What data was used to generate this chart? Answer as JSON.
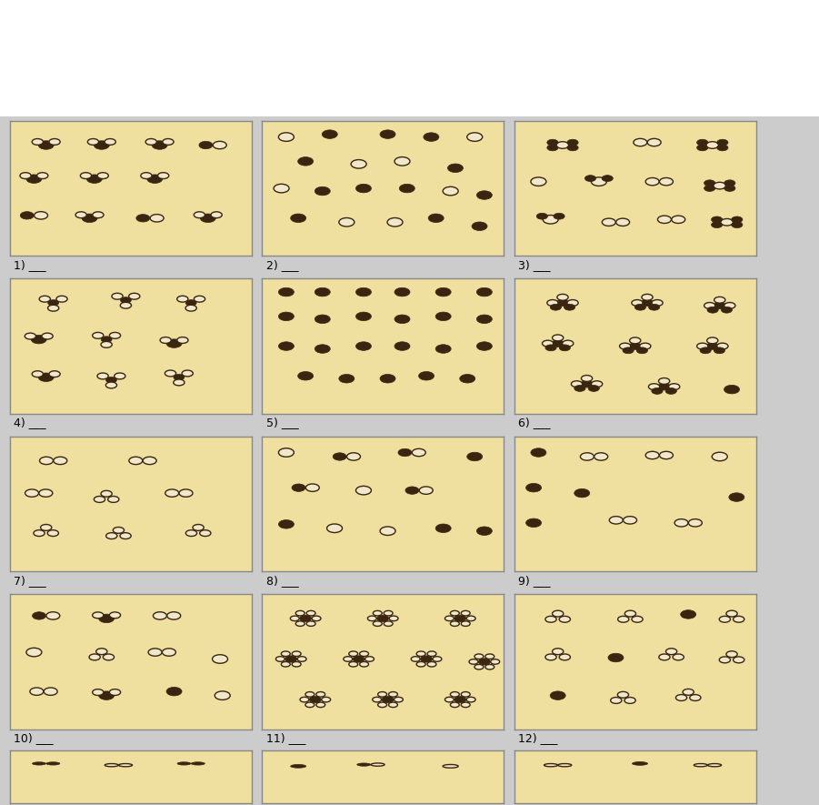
{
  "bg_color": "#f0e8c8",
  "dark": "#3a2510",
  "light_face": "#f0e8c8",
  "box_bg": "#f0e0a0",
  "box_edge": "#888888",
  "page_bg": "#d8d8d8"
}
